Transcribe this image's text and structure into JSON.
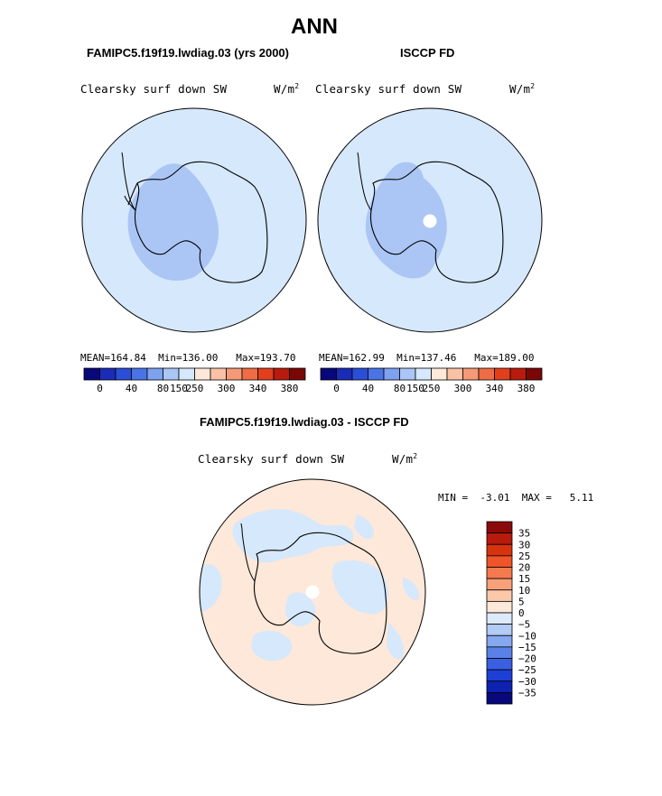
{
  "figure": {
    "title": "ANN"
  },
  "chart_data": [
    {
      "type": "heatmap",
      "projection": "south-polar-stereographic",
      "case_title": "FAMIPC5.f19f19.lwdiag.03 (yrs 2000)",
      "variable": "Clearsky surf down SW",
      "units": "W/m",
      "units_exp": "2",
      "stats": {
        "mean_label": "MEAN=",
        "mean": "164.84",
        "min_label": "Min=",
        "min": "136.00",
        "max_label": "Max=",
        "max": "193.70"
      },
      "colorbar": {
        "orientation": "horizontal",
        "colors": [
          "#08087a",
          "#1a2bb5",
          "#2b4ed6",
          "#4a74e6",
          "#7ea1f0",
          "#abc6f5",
          "#d6e8fb",
          "#fde8d9",
          "#f9c2a6",
          "#f59a78",
          "#ef6d45",
          "#e23f1d",
          "#b81b0d",
          "#7a0606"
        ],
        "tick_labels": [
          "0",
          "40",
          "80",
          "150",
          "250",
          "300",
          "340",
          "380"
        ]
      }
    },
    {
      "type": "heatmap",
      "projection": "south-polar-stereographic",
      "case_title": "ISCCP FD",
      "variable": "Clearsky surf down SW",
      "units": "W/m",
      "units_exp": "2",
      "stats": {
        "mean_label": "MEAN=",
        "mean": "162.99",
        "min_label": "Min=",
        "min": "137.46",
        "max_label": "Max=",
        "max": "189.00"
      },
      "colorbar": {
        "orientation": "horizontal",
        "colors": [
          "#08087a",
          "#1a2bb5",
          "#2b4ed6",
          "#4a74e6",
          "#7ea1f0",
          "#abc6f5",
          "#d6e8fb",
          "#fde8d9",
          "#f9c2a6",
          "#f59a78",
          "#ef6d45",
          "#e23f1d",
          "#b81b0d",
          "#7a0606"
        ],
        "tick_labels": [
          "0",
          "40",
          "80",
          "150",
          "250",
          "300",
          "340",
          "380"
        ]
      }
    },
    {
      "type": "heatmap",
      "projection": "south-polar-stereographic",
      "case_title": "FAMIPC5.f19f19.lwdiag.03 - ISCCP FD",
      "variable": "Clearsky surf down SW",
      "units": "W/m",
      "units_exp": "2",
      "stats": {
        "min_label": "MIN =",
        "min": "-3.01",
        "max_label": "MAX =",
        "max": "5.11"
      },
      "colorbar": {
        "orientation": "vertical",
        "colors_top_to_bottom": [
          "#8b0a0a",
          "#b81b0d",
          "#d8330f",
          "#ef5528",
          "#f57a4e",
          "#f8a07a",
          "#fbc9aa",
          "#fde8d9",
          "#dceafb",
          "#b3ccf5",
          "#86a8f0",
          "#5a82e6",
          "#3a5fe0",
          "#1e3fd6",
          "#0d22b0",
          "#08087a"
        ],
        "tick_labels_top_to_bottom": [
          "35",
          "30",
          "25",
          "20",
          "15",
          "10",
          "5",
          "0",
          "−5",
          "−10",
          "−15",
          "−20",
          "−25",
          "−30",
          "−35"
        ]
      }
    }
  ],
  "palette": {
    "ocean_fill": "#d6e8fb",
    "interior_fill": "#abc6f5",
    "diff_fill": "#fde8d9",
    "diff_neg_fill": "#d6e8fb",
    "missing": "#ffffff",
    "outline": "#000000"
  }
}
